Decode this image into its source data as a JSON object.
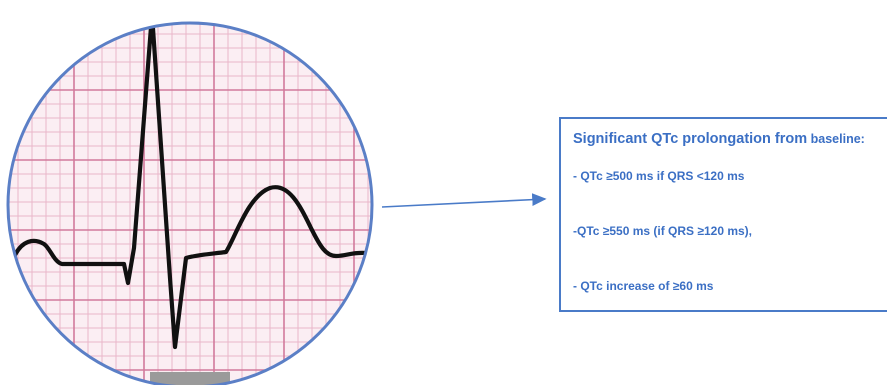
{
  "colors": {
    "grid_minor": "#e9b6c9",
    "grid_major": "#d27a9c",
    "circle_border": "#5b7fc6",
    "trace": "#111111",
    "text": "#3b6fc4",
    "box_border": "#4a7bc8",
    "arrow": "#4a7bc8"
  },
  "info_box": {
    "title_main": "Significant QTc prolongation fro",
    "title_m": "m",
    "title_small": " baseline:",
    "criteria": [
      "- QTc ≥500 ms if QRS <120 ms",
      "-QTc ≥550 ms (if QRS ≥120 ms),",
      "- QTc increase of ≥60 ms"
    ]
  },
  "icons": {
    "ecg_strip": "ecg-waveform-icon",
    "arrow": "arrow-right-icon"
  }
}
